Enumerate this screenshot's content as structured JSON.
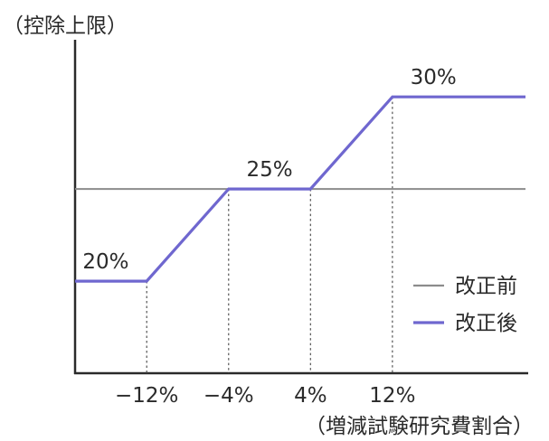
{
  "chart_data": {
    "type": "line",
    "ylabel": "（控除上限）",
    "xlabel": "（増減試験研究費割合）",
    "x_ticks": [
      "−12%",
      "−4%",
      "4%",
      "12%"
    ],
    "x_tick_values": [
      -12,
      -4,
      4,
      12
    ],
    "xlim": [
      -19,
      25
    ],
    "ylim": [
      15,
      33
    ],
    "series": [
      {
        "name": "改正前",
        "color": "#8c8c8c",
        "x": [
          -19,
          25
        ],
        "y": [
          25,
          25
        ]
      },
      {
        "name": "改正後",
        "color": "#6f67cf",
        "x": [
          -19,
          -12,
          -4,
          4,
          12,
          25
        ],
        "y": [
          20,
          20,
          25,
          25,
          30,
          30
        ]
      }
    ],
    "annotations": [
      {
        "text": "20%",
        "x": -16,
        "y": 20
      },
      {
        "text": "25%",
        "x": 0,
        "y": 25
      },
      {
        "text": "30%",
        "x": 16,
        "y": 30
      }
    ],
    "legend_position": "bottom-right",
    "grid": false
  }
}
